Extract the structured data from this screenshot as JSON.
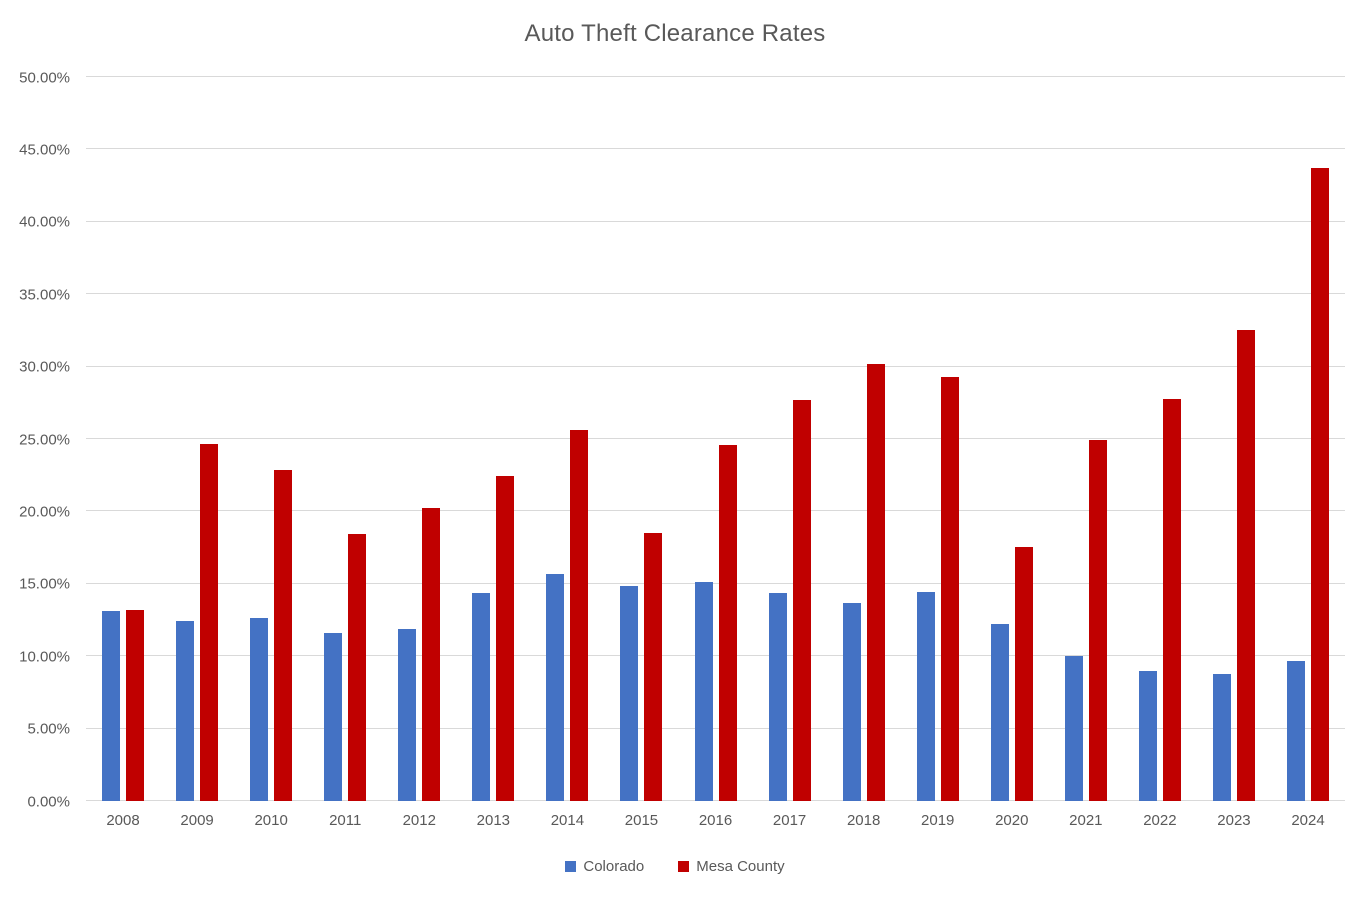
{
  "chart_data": {
    "type": "bar",
    "title": "Auto Theft Clearance Rates",
    "categories": [
      "2008",
      "2009",
      "2010",
      "2011",
      "2012",
      "2013",
      "2014",
      "2015",
      "2016",
      "2017",
      "2018",
      "2019",
      "2020",
      "2021",
      "2022",
      "2023",
      "2024"
    ],
    "series": [
      {
        "name": "Colorado",
        "color": "#4472C4",
        "values": [
          13.1,
          12.45,
          12.65,
          11.6,
          11.85,
          14.4,
          15.7,
          14.85,
          15.1,
          14.35,
          13.7,
          14.45,
          12.2,
          10.0,
          9.0,
          8.75,
          9.7
        ]
      },
      {
        "name": "Mesa County",
        "color": "#C00000",
        "values": [
          13.2,
          24.65,
          22.85,
          18.45,
          20.25,
          22.45,
          25.65,
          18.5,
          24.6,
          27.7,
          30.2,
          29.25,
          17.55,
          24.9,
          27.75,
          32.5,
          43.7
        ]
      }
    ],
    "xlabel": "",
    "ylabel": "",
    "ylim": [
      0,
      50
    ],
    "ytick_step": 5,
    "ytick_labels": [
      "0.00%",
      "5.00%",
      "10.00%",
      "15.00%",
      "20.00%",
      "25.00%",
      "30.00%",
      "35.00%",
      "40.00%",
      "45.00%",
      "50.00%"
    ],
    "grid": true,
    "legend_position": "bottom",
    "colors": {
      "title_text": "#595959",
      "axis_text": "#595959",
      "gridline": "#d9d9d9",
      "background": "#ffffff"
    }
  }
}
